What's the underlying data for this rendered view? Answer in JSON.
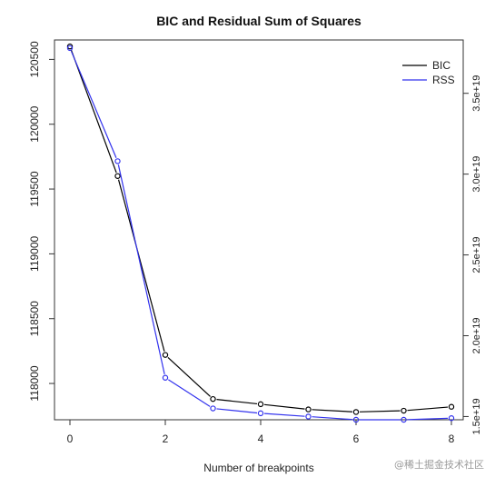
{
  "chart_data": {
    "type": "line",
    "title": "BIC and Residual Sum of Squares",
    "xlabel": "Number of breakpoints",
    "ylabel": "",
    "x": [
      0,
      1,
      2,
      3,
      4,
      5,
      6,
      7,
      8
    ],
    "xlim": [
      0,
      8
    ],
    "x_ticks": [
      0,
      2,
      4,
      6,
      8
    ],
    "x_tick_labels": [
      "0",
      "2",
      "4",
      "6",
      "8"
    ],
    "left_axis": {
      "ylim": [
        117720,
        120650
      ],
      "ticks": [
        118000,
        118500,
        119000,
        119500,
        120000,
        120500
      ],
      "tick_labels": [
        "118000",
        "118500",
        "119000",
        "119500",
        "120000",
        "120500"
      ]
    },
    "right_axis": {
      "ylim": [
        1.48e+19,
        3.83e+19
      ],
      "ticks": [
        1.5e+19,
        2e+19,
        2.5e+19,
        3e+19,
        3.5e+19
      ],
      "tick_labels": [
        "1.5e+19",
        "2.0e+19",
        "2.5e+19",
        "3.0e+19",
        "3.5e+19"
      ]
    },
    "series": [
      {
        "name": "BIC",
        "color": "#000000",
        "axis": "left",
        "values": [
          120600,
          119600,
          118220,
          117880,
          117840,
          117800,
          117780,
          117790,
          117820
        ]
      },
      {
        "name": "RSS",
        "color": "#3333ee",
        "axis": "right",
        "values": [
          3.78e+19,
          3.08e+19,
          1.74e+19,
          1.55e+19,
          1.52e+19,
          1.5e+19,
          1.48e+19,
          1.48e+19,
          1.49e+19
        ]
      }
    ],
    "legend": {
      "position": "top-right",
      "entries": [
        "BIC",
        "RSS"
      ]
    },
    "grid": false
  },
  "watermark": "@稀土掘金技术社区"
}
